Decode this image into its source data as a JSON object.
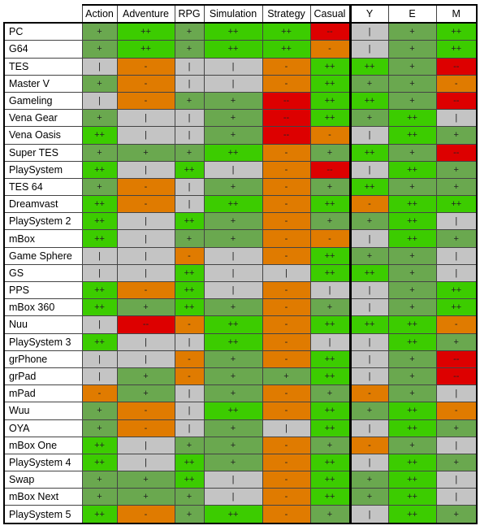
{
  "columns": [
    "Action",
    "Adventure",
    "RPG",
    "Simulation",
    "Strategy",
    "Casual",
    "Y",
    "E",
    "M"
  ],
  "rows": [
    {
      "label": "PC",
      "cells": [
        "+",
        "++",
        "+",
        "++",
        "++",
        "--",
        "|",
        "+",
        "++"
      ]
    },
    {
      "label": "G64",
      "cells": [
        "+",
        "++",
        "+",
        "++",
        "++",
        "-",
        "|",
        "+",
        "++"
      ]
    },
    {
      "label": "TES",
      "cells": [
        "|",
        "-",
        "|",
        "|",
        "-",
        "++",
        "++",
        "+",
        "--"
      ]
    },
    {
      "label": "Master V",
      "cells": [
        "+",
        "-",
        "|",
        "|",
        "-",
        "++",
        "+",
        "+",
        "-"
      ]
    },
    {
      "label": "Gameling",
      "cells": [
        "|",
        "-",
        "+",
        "+",
        "--",
        "++",
        "++",
        "+",
        "--"
      ]
    },
    {
      "label": "Vena Gear",
      "cells": [
        "+",
        "|",
        "|",
        "+",
        "--",
        "++",
        "+",
        "++",
        "|"
      ]
    },
    {
      "label": "Vena Oasis",
      "cells": [
        "++",
        "|",
        "|",
        "+",
        "--",
        "-",
        "|",
        "++",
        "+"
      ]
    },
    {
      "label": "Super TES",
      "cells": [
        "+",
        "+",
        "+",
        "++",
        "-",
        "+",
        "++",
        "+",
        "--"
      ]
    },
    {
      "label": "PlaySystem",
      "cells": [
        "++",
        "|",
        "++",
        "|",
        "-",
        "--",
        "|",
        "++",
        "+"
      ]
    },
    {
      "label": "TES 64",
      "cells": [
        "+",
        "-",
        "|",
        "+",
        "-",
        "+",
        "++",
        "+",
        "+"
      ]
    },
    {
      "label": "Dreamvast",
      "cells": [
        "++",
        "-",
        "|",
        "++",
        "-",
        "++",
        "-",
        "++",
        "++"
      ]
    },
    {
      "label": "PlaySystem 2",
      "cells": [
        "++",
        "|",
        "++",
        "+",
        "-",
        "+",
        "+",
        "++",
        "|"
      ]
    },
    {
      "label": "mBox",
      "cells": [
        "++",
        "|",
        "+",
        "+",
        "-",
        "-",
        "|",
        "++",
        "+"
      ]
    },
    {
      "label": "Game Sphere",
      "cells": [
        "|",
        "|",
        "-",
        "|",
        "-",
        "++",
        "+",
        "+",
        "|"
      ]
    },
    {
      "label": "GS",
      "cells": [
        "|",
        "|",
        "++",
        "|",
        "|",
        "++",
        "++",
        "+",
        "|"
      ]
    },
    {
      "label": "PPS",
      "cells": [
        "++",
        "-",
        "++",
        "|",
        "-",
        "|",
        "|",
        "+",
        "++"
      ]
    },
    {
      "label": "mBox 360",
      "cells": [
        "++",
        "+",
        "++",
        "+",
        "-",
        "+",
        "|",
        "+",
        "++"
      ]
    },
    {
      "label": "Nuu",
      "cells": [
        "|",
        "--",
        "-",
        "++",
        "-",
        "++",
        "++",
        "++",
        "-"
      ]
    },
    {
      "label": "PlaySystem 3",
      "cells": [
        "++",
        "|",
        "|",
        "++",
        "-",
        "|",
        "|",
        "++",
        "+"
      ]
    },
    {
      "label": "grPhone",
      "cells": [
        "|",
        "|",
        "-",
        "+",
        "-",
        "++",
        "|",
        "+",
        "--"
      ]
    },
    {
      "label": "grPad",
      "cells": [
        "|",
        "+",
        "-",
        "+",
        "+",
        "++",
        "|",
        "+",
        "--"
      ]
    },
    {
      "label": "mPad",
      "cells": [
        "-",
        "+",
        "|",
        "+",
        "-",
        "+",
        "-",
        "+",
        "|"
      ]
    },
    {
      "label": "Wuu",
      "cells": [
        "+",
        "-",
        "|",
        "++",
        "-",
        "++",
        "+",
        "++",
        "-"
      ]
    },
    {
      "label": "OYA",
      "cells": [
        "+",
        "-",
        "|",
        "+",
        "|",
        "++",
        "|",
        "++",
        "+"
      ]
    },
    {
      "label": "mBox One",
      "cells": [
        "++",
        "|",
        "+",
        "+",
        "-",
        "+",
        "-",
        "+",
        "|"
      ]
    },
    {
      "label": "PlaySystem 4",
      "cells": [
        "++",
        "|",
        "++",
        "+",
        "-",
        "++",
        "|",
        "++",
        "+"
      ]
    },
    {
      "label": "Swap",
      "cells": [
        "+",
        "+",
        "++",
        "|",
        "-",
        "++",
        "+",
        "++",
        "|"
      ]
    },
    {
      "label": "mBox Next",
      "cells": [
        "+",
        "+",
        "+",
        "|",
        "-",
        "++",
        "+",
        "++",
        "|"
      ]
    },
    {
      "label": "PlaySystem 5",
      "cells": [
        "++",
        "-",
        "+",
        "++",
        "-",
        "+",
        "|",
        "++",
        "+"
      ]
    }
  ]
}
